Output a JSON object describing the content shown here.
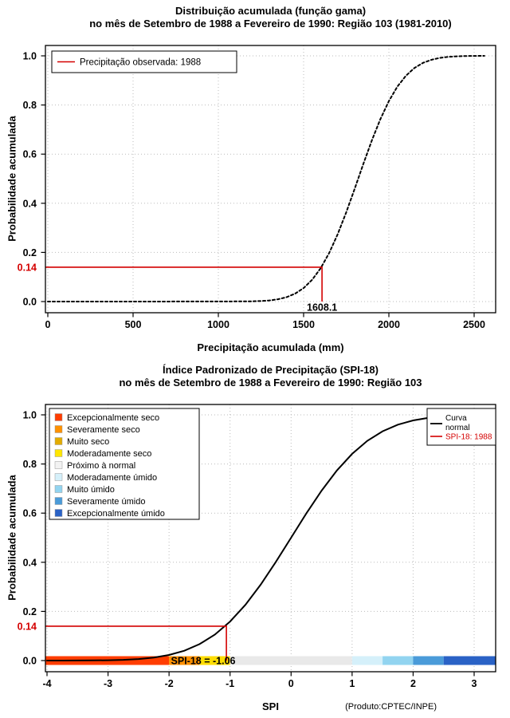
{
  "colors": {
    "red": "#D40000",
    "curve": "#000000",
    "grid": "#BBBBBB",
    "frame": "#000000"
  },
  "chart1": {
    "title_line1": "Distribuição acumulada (função gama)",
    "title_line2": "no mês de Setembro de 1988 a Fevereiro de 1990: Região 103 (1981-2010)",
    "xlabel": "Precipitação acumulada (mm)",
    "ylabel": "Probabilidade acumulada",
    "x_tick_values": [
      0,
      500,
      1000,
      1500,
      2000,
      2500
    ],
    "x_tick_labels": [
      "0",
      "500",
      "1000",
      "1500",
      "2000",
      "2500"
    ],
    "y_tick_values": [
      0,
      0.2,
      0.4,
      0.6,
      0.8,
      1
    ],
    "y_tick_labels": [
      "0.0",
      "0.2",
      "0.4",
      "0.6",
      "0.8",
      "1.0"
    ],
    "legend_label": "Precipitação observada: 1988",
    "ref": {
      "prob": 0.14,
      "prob_label": "0.14",
      "x": 1608.1,
      "x_label": "1608.1"
    }
  },
  "chart2": {
    "title_line1": "Índice Padronizado de Precipitação (SPI-18)",
    "title_line2": "no mês de Setembro de 1988 a Fevereiro de 1990: Região 103",
    "xlabel": "SPI",
    "ylabel": "Probabilidade acumulada",
    "x_tick_values": [
      -4,
      -3,
      -2,
      -1,
      0,
      1,
      2,
      3
    ],
    "x_tick_labels": [
      "-4",
      "-3",
      "-2",
      "-1",
      "0",
      "1",
      "2",
      "3"
    ],
    "y_tick_values": [
      0,
      0.2,
      0.4,
      0.6,
      0.8,
      1
    ],
    "y_tick_labels": [
      "0.0",
      "0.2",
      "0.4",
      "0.6",
      "0.8",
      "1.0"
    ],
    "category_legend": [
      {
        "label": "Excepcionalmente seco",
        "color": "#FF3D00"
      },
      {
        "label": "Severamente seco",
        "color": "#FF9100"
      },
      {
        "label": "Muito seco",
        "color": "#E3AC00"
      },
      {
        "label": "Moderadamente seco",
        "color": "#FFE600"
      },
      {
        "label": "Próximo à normal",
        "color": "#F2F2F2"
      },
      {
        "label": "Moderadamente úmido",
        "color": "#D5F0FA"
      },
      {
        "label": "Muito úmido",
        "color": "#92D4F0"
      },
      {
        "label": "Severamente úmido",
        "color": "#4A9BD9"
      },
      {
        "label": "Excepcionalmente úmido",
        "color": "#2A62C6"
      }
    ],
    "curve_legend": [
      {
        "label_lines": [
          "Curva",
          "normal"
        ],
        "color": "#000000"
      },
      {
        "label_lines": [
          "SPI-18: 1988"
        ],
        "color": "#D40000"
      }
    ],
    "bar_segments": [
      {
        "from": -4,
        "to": -2,
        "color": "#FF3D00"
      },
      {
        "from": -2,
        "to": -1.5,
        "color": "#FF9100"
      },
      {
        "from": -1.5,
        "to": -1,
        "color": "#FFDD00"
      },
      {
        "from": -1,
        "to": 1,
        "color": "#E9E9E9"
      },
      {
        "from": 1,
        "to": 1.5,
        "color": "#D5F0FA"
      },
      {
        "from": 1.5,
        "to": 2,
        "color": "#92D4F0"
      },
      {
        "from": 2,
        "to": 2.5,
        "color": "#4A9BD9"
      },
      {
        "from": 2.5,
        "to": 3,
        "color": "#2A62C6"
      }
    ],
    "ref": {
      "prob": 0.14,
      "prob_label": "0.14",
      "x": -1.06
    },
    "spi_annotation": "SPI-18 = -1.06",
    "product_label": "(Produto:CPTEC/INPE)"
  },
  "chart_data": [
    {
      "type": "line",
      "name": "gamma-cumulative-distribution",
      "title": "Distribuição acumulada (função gama) — no mês de Setembro de 1988 a Fevereiro de 1990: Região 103 (1981-2010)",
      "xlabel": "Precipitação acumulada (mm)",
      "ylabel": "Probabilidade acumulada",
      "xlim": [
        0,
        2560
      ],
      "ylim": [
        0,
        1
      ],
      "grid": true,
      "legend_position": "topleft",
      "x": [
        0,
        200,
        400,
        600,
        800,
        1000,
        1100,
        1200,
        1250,
        1300,
        1350,
        1400,
        1450,
        1500,
        1550,
        1600,
        1650,
        1700,
        1750,
        1800,
        1850,
        1900,
        1950,
        2000,
        2050,
        2100,
        2150,
        2200,
        2250,
        2300,
        2350,
        2400,
        2450,
        2500,
        2560
      ],
      "y": [
        0,
        0,
        0,
        0.0001,
        0.0002,
        0.0004,
        0.0007,
        0.001,
        0.0022,
        0.0047,
        0.0094,
        0.0179,
        0.0322,
        0.0548,
        0.0885,
        0.1357,
        0.1977,
        0.2743,
        0.3632,
        0.4602,
        0.5596,
        0.6554,
        0.7422,
        0.8159,
        0.8749,
        0.9192,
        0.9505,
        0.9713,
        0.9842,
        0.9918,
        0.996,
        0.9981,
        0.9992,
        0.9997,
        0.9999
      ],
      "observed": {
        "precipitation_mm": 1608.1,
        "cumulative_probability": 0.14
      }
    },
    {
      "type": "line",
      "name": "normal-cumulative-distribution-spi18",
      "title": "Índice Padronizado de Precipitação (SPI-18) — no mês de Setembro de 1988 a Fevereiro de 1990: Região 103",
      "xlabel": "SPI",
      "ylabel": "Probabilidade acumulada",
      "xlim": [
        -4,
        3
      ],
      "ylim": [
        0,
        1
      ],
      "grid": true,
      "legend_position": "topleft and topright",
      "x": [
        -4,
        -3.75,
        -3.5,
        -3.25,
        -3,
        -2.75,
        -2.5,
        -2.25,
        -2,
        -1.75,
        -1.5,
        -1.25,
        -1,
        -0.75,
        -0.5,
        -0.25,
        0,
        0.25,
        0.5,
        0.75,
        1,
        1.25,
        1.5,
        1.75,
        2,
        2.25,
        2.5,
        2.75,
        3
      ],
      "y": [
        3e-05,
        9e-05,
        0.00023,
        0.00058,
        0.00135,
        0.00298,
        0.00621,
        0.01222,
        0.02275,
        0.04006,
        0.06681,
        0.10565,
        0.15866,
        0.22663,
        0.30854,
        0.40129,
        0.5,
        0.59871,
        0.69146,
        0.77337,
        0.84134,
        0.89435,
        0.93319,
        0.95994,
        0.97725,
        0.98778,
        0.99379,
        0.99702,
        0.99865
      ],
      "observed": {
        "spi": -1.06,
        "cumulative_probability": 0.14
      }
    }
  ]
}
